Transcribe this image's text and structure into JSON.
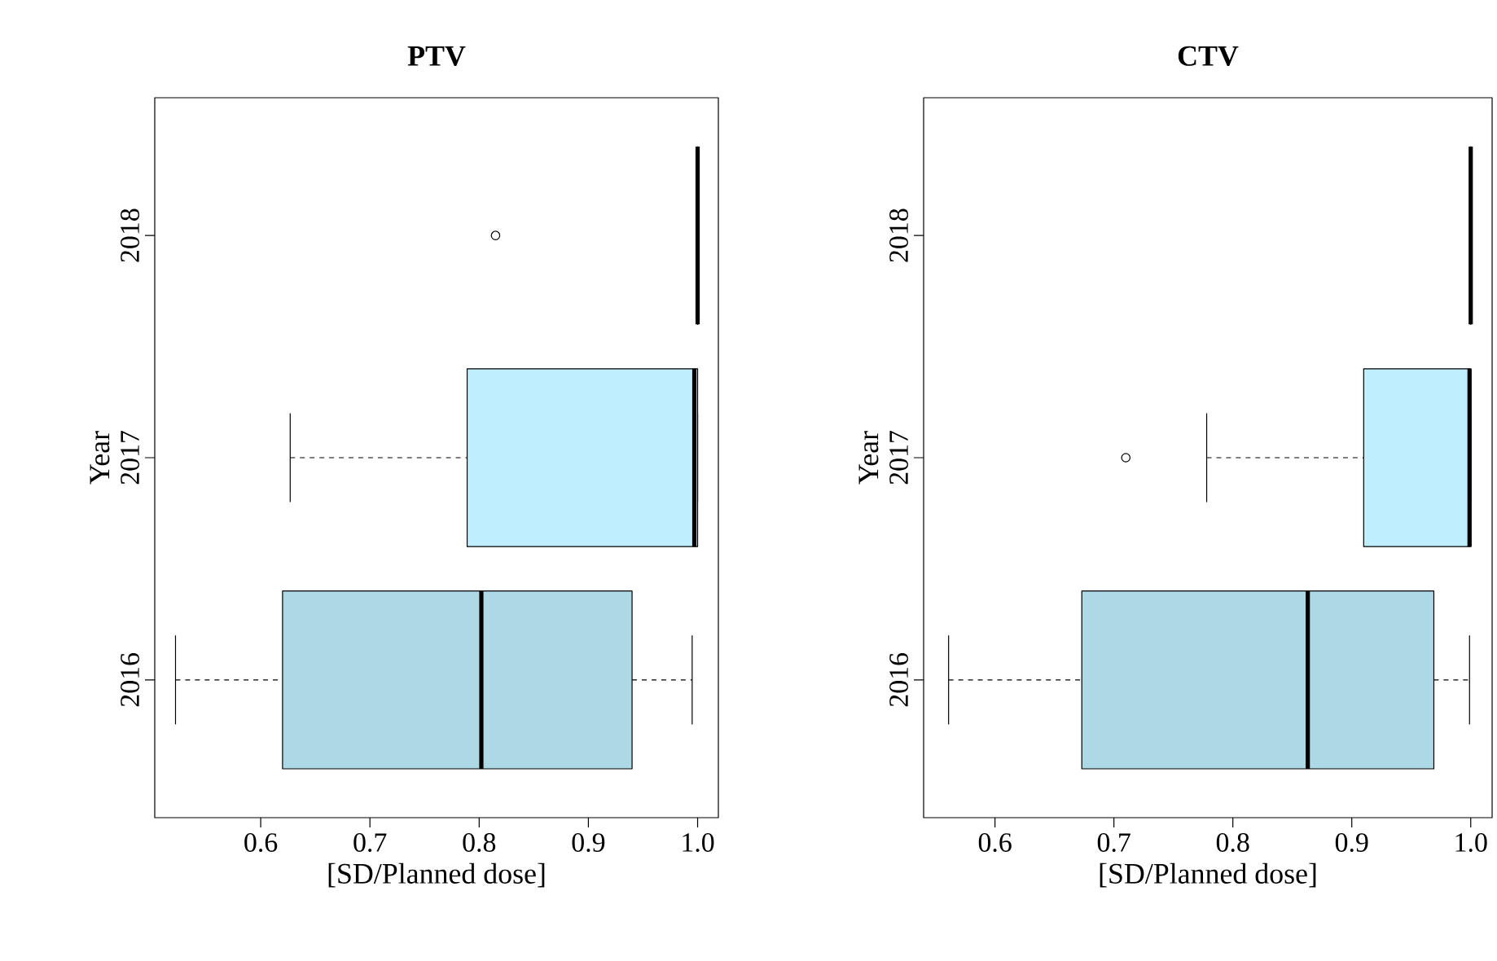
{
  "chart_data": [
    {
      "type": "box",
      "title": "PTV",
      "xlabel": "[SD/Planned dose]",
      "ylabel": "Year",
      "orientation": "horizontal",
      "categories": [
        "2018",
        "2017",
        "2016"
      ],
      "colors": [
        null,
        "#bfefff",
        "#add8e6"
      ],
      "boxes": [
        {
          "low": 1.0,
          "q1": 1.0,
          "median": 1.0,
          "q3": 1.0,
          "high": 1.0,
          "outliers": [
            0.815
          ]
        },
        {
          "low": 0.627,
          "q1": 0.789,
          "median": 0.997,
          "q3": 1.0,
          "high": 1.0
        },
        {
          "low": 0.522,
          "q1": 0.62,
          "median": 0.802,
          "q3": 0.94,
          "high": 0.995
        }
      ],
      "xlim": [
        0.503,
        1.019
      ],
      "xticks": [
        0.6,
        0.7,
        0.8,
        0.9,
        {
          "value": 1.0,
          "label": "1.0"
        }
      ]
    },
    {
      "type": "box",
      "title": "CTV",
      "xlabel": "[SD/Planned dose]",
      "ylabel": "Year",
      "orientation": "horizontal",
      "categories": [
        "2018",
        "2017",
        "2016"
      ],
      "colors": [
        null,
        "#bfefff",
        "#add8e6"
      ],
      "boxes": [
        {
          "low": 1.0,
          "q1": 1.0,
          "median": 1.0,
          "q3": 1.0,
          "high": 1.0
        },
        {
          "low": 0.778,
          "q1": 0.91,
          "median": 0.999,
          "q3": 1.0,
          "high": 1.0,
          "outliers": [
            0.71
          ]
        },
        {
          "low": 0.561,
          "q1": 0.673,
          "median": 0.863,
          "q3": 0.969,
          "high": 0.999
        }
      ],
      "xlim": [
        0.54,
        1.018
      ],
      "xticks": [
        0.6,
        0.7,
        0.8,
        0.9,
        {
          "value": 1.0,
          "label": "1.0"
        }
      ]
    }
  ]
}
